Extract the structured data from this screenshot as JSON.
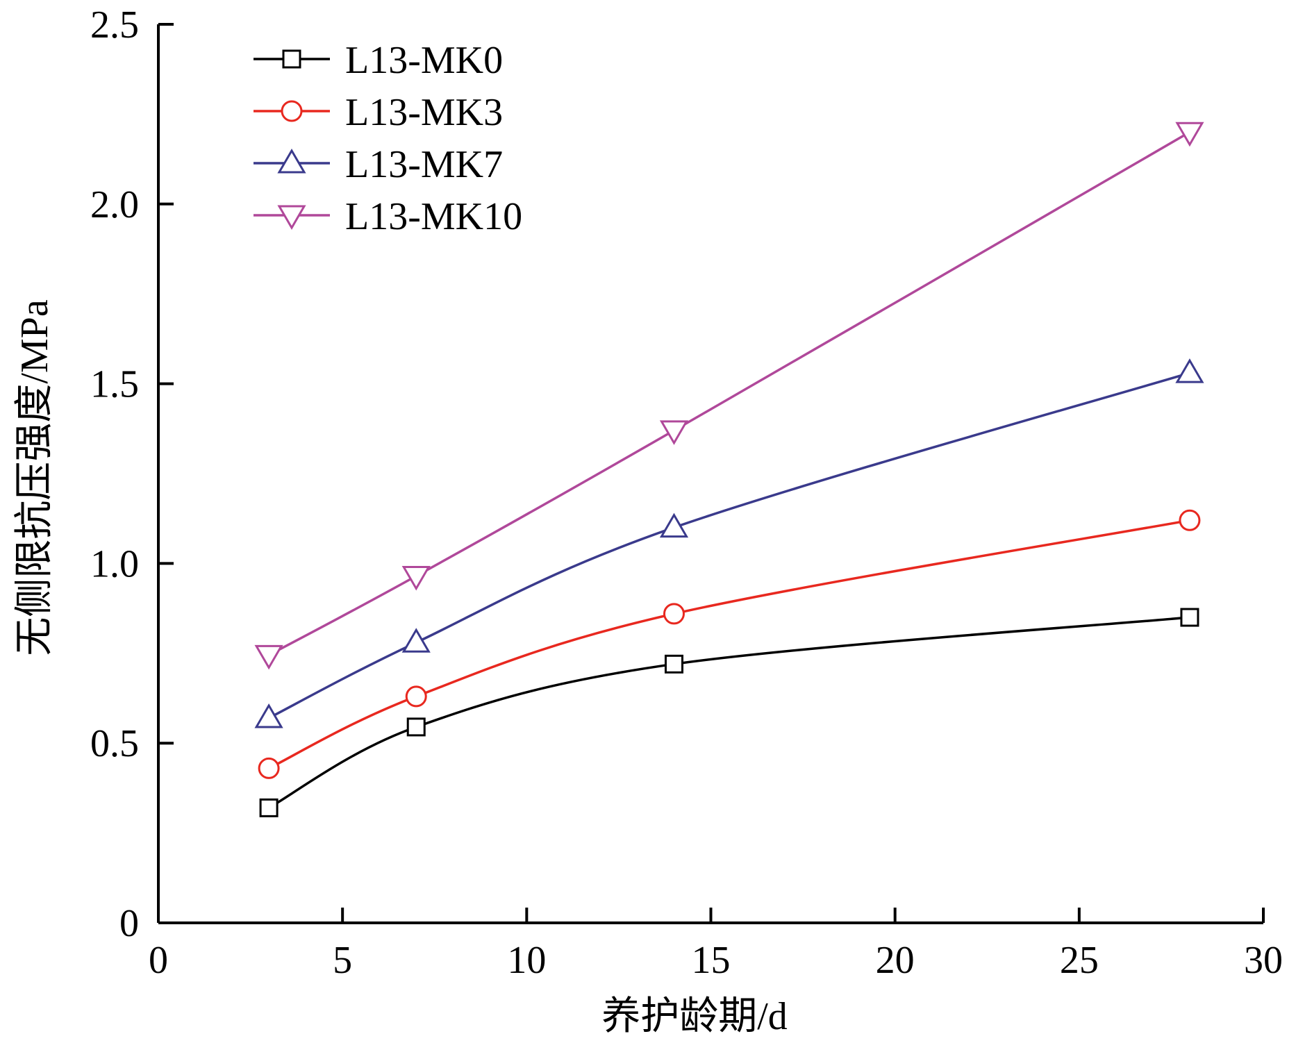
{
  "chart_data": {
    "type": "line",
    "xlabel": "养护龄期/d",
    "ylabel": "无侧限抗压强度/MPa",
    "xlim": [
      0,
      30
    ],
    "ylim": [
      0,
      2.5
    ],
    "xticks": [
      "0",
      "5",
      "10",
      "15",
      "20",
      "25",
      "30"
    ],
    "yticks": [
      "0",
      "0.5",
      "1.0",
      "1.5",
      "2.0",
      "2.5"
    ],
    "grid": false,
    "legend_position": "top-left",
    "x": [
      3,
      7,
      14,
      28
    ],
    "series": [
      {
        "name": "L13-MK0",
        "marker": "square",
        "color": "#000000",
        "values": [
          0.32,
          0.545,
          0.72,
          0.85
        ]
      },
      {
        "name": "L13-MK3",
        "marker": "circle",
        "color": "#e8281f",
        "values": [
          0.43,
          0.63,
          0.86,
          1.12
        ]
      },
      {
        "name": "L13-MK7",
        "marker": "triangle-up",
        "color": "#3a3a8c",
        "values": [
          0.57,
          0.78,
          1.1,
          1.53
        ]
      },
      {
        "name": "L13-MK10",
        "marker": "triangle-down",
        "color": "#b0489a",
        "values": [
          0.745,
          0.965,
          1.37,
          2.2
        ]
      }
    ]
  }
}
